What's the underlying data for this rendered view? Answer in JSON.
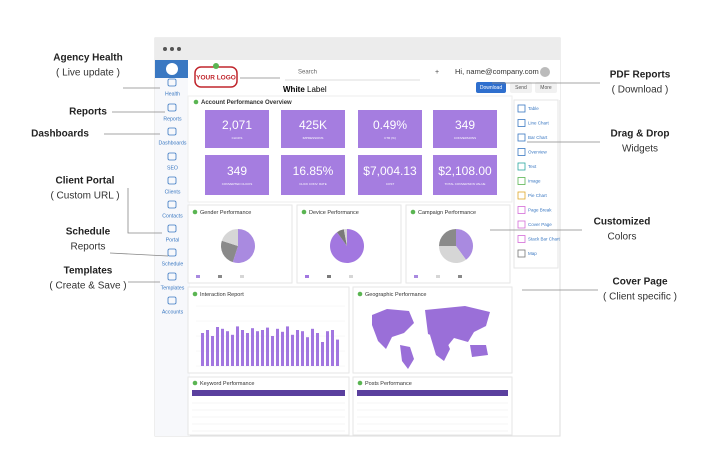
{
  "callouts": [
    {
      "title": "Agency Health",
      "subtitle": "( Live update )"
    },
    {
      "title": "Reports"
    },
    {
      "title": "Dashboards"
    },
    {
      "title": "Client Portal",
      "subtitle": "( Custom URL )"
    },
    {
      "title": "Schedule",
      "subtitle": "Reports"
    },
    {
      "title": "Templates",
      "subtitle": "( Create & Save )"
    },
    {
      "title": "PDF Reports",
      "subtitle": "( Download )"
    },
    {
      "title": "Drag & Drop",
      "subtitle": "Widgets"
    },
    {
      "title": "Customized",
      "subtitle": "Colors"
    },
    {
      "title": "Cover Page",
      "subtitle": "( Client specific )"
    }
  ],
  "sidebar": [
    "Health",
    "Reports",
    "Dashboards",
    "SEO",
    "Clients",
    "Contacts",
    "Portal",
    "Schedule",
    "Templates",
    "Accounts"
  ],
  "header": {
    "logo": "YOUR LOGO",
    "search": "Search",
    "brand_bold": "White",
    "brand": "Label",
    "user": "Hi, name@company.com",
    "buttons": [
      "Download",
      "Send",
      "More"
    ]
  },
  "widgets": [
    "Table",
    "Line Chart",
    "Bar Chart",
    "Overview",
    "Text",
    "Image",
    "Pie Chart",
    "Page Break",
    "Cover Page",
    "Stack Bar Chart",
    "Map"
  ],
  "overview": {
    "title": "Account Performance Overview",
    "kpis": [
      {
        "value": "2,071",
        "label": "CLICKS"
      },
      {
        "value": "425K",
        "label": "IMPRESSIONS"
      },
      {
        "value": "0.49%",
        "label": "CTR (%)"
      },
      {
        "value": "349",
        "label": "CONVERSIONS"
      },
      {
        "value": "349",
        "label": "CONVERTED CLICKS"
      },
      {
        "value": "16.85%",
        "label": "CLICK CONV. RATE"
      },
      {
        "value": "$7,004.13",
        "label": "COST"
      },
      {
        "value": "$2,108.00",
        "label": "TOTAL CONVERSION VALUE"
      }
    ]
  },
  "pies": [
    {
      "title": "Gender Performance",
      "values": [
        55,
        25,
        20
      ],
      "colors": [
        "#a98ae0",
        "#8a8a8a",
        "#d6d6d6"
      ]
    },
    {
      "title": "Device Performance",
      "values": [
        90,
        7,
        3
      ],
      "colors": [
        "#a277e0",
        "#7a7a7a",
        "#d6d6d6"
      ]
    },
    {
      "title": "Campaign Performance",
      "values": [
        40,
        35,
        25
      ],
      "colors": [
        "#a98ae0",
        "#d6d6d6",
        "#8a8a8a"
      ]
    }
  ],
  "interaction": {
    "title": "Interaction Report",
    "color": "#a277e0",
    "values": [
      55,
      60,
      50,
      65,
      62,
      58,
      52,
      66,
      60,
      55,
      63,
      58,
      60,
      64,
      50,
      62,
      57,
      66,
      52,
      60,
      58,
      48,
      62,
      55,
      40,
      58,
      60,
      44
    ]
  },
  "geo": {
    "title": "Geographic Performance"
  },
  "tables": [
    "Keyword Performance",
    "Posts Performance"
  ]
}
